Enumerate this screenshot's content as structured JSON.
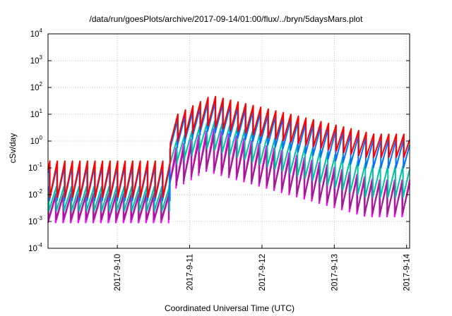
{
  "chart_data": {
    "type": "line",
    "title": "/data/run/goesPlots/archive/2017-09-14/01:00/flux/../bryn/5daysMars.plot",
    "xlabel": "Coordinated Universal Time (UTC)",
    "ylabel": "cSv/day",
    "xlim": [
      "2017-09-09T01:00",
      "2017-09-14T01:00"
    ],
    "ylim": [
      0.0001,
      10000
    ],
    "y_scale": "log",
    "grid": true,
    "x_ticks": [
      "2017-9-10",
      "2017-9-11",
      "2017-9-12",
      "2017-9-13",
      "2017-9-14"
    ],
    "y_ticks": [
      {
        "base": "10",
        "exp": "-4",
        "value": 0.0001
      },
      {
        "base": "10",
        "exp": "-3",
        "value": 0.001
      },
      {
        "base": "10",
        "exp": "-2",
        "value": 0.01
      },
      {
        "base": "10",
        "exp": "-1",
        "value": 0.1
      },
      {
        "base": "10",
        "exp": "0",
        "value": 1
      },
      {
        "base": "10",
        "exp": "1",
        "value": 10
      },
      {
        "base": "10",
        "exp": "2",
        "value": 100
      },
      {
        "base": "10",
        "exp": "3",
        "value": 1000
      },
      {
        "base": "10",
        "exp": "4",
        "value": 10000
      }
    ],
    "sawtooth_period_hours": 2.5,
    "series": [
      {
        "color": "#ff00ff",
        "peaks_low": 0.0085,
        "troughs_low": 0.0009,
        "peaks_storm": 3.0,
        "troughs_storm": 0.08,
        "peaks_end": 0.035,
        "troughs_end": 0.0015
      },
      {
        "color": "#9a1f8a",
        "peaks_low": 0.011,
        "troughs_low": 0.0012,
        "peaks_storm": 2.0,
        "troughs_storm": 0.1,
        "peaks_end": 0.03,
        "troughs_end": 0.002
      },
      {
        "color": "#00c0a0",
        "peaks_low": 0.02,
        "troughs_low": 0.0025,
        "peaks_storm": 6.0,
        "troughs_storm": 0.6,
        "peaks_end": 0.12,
        "troughs_end": 0.008
      },
      {
        "color": "#0070ff",
        "peaks_low": 0.11,
        "troughs_low": 0.006,
        "peaks_storm": 30.0,
        "troughs_storm": 2.5,
        "peaks_end": 1.1,
        "troughs_end": 0.1
      },
      {
        "color": "#ff0000",
        "peaks_low": 0.18,
        "troughs_low": 0.008,
        "peaks_storm": 50.0,
        "troughs_storm": 4.0,
        "peaks_end": 1.8,
        "troughs_end": 0.25
      }
    ],
    "event_onset": "2017-09-10T17:30"
  }
}
